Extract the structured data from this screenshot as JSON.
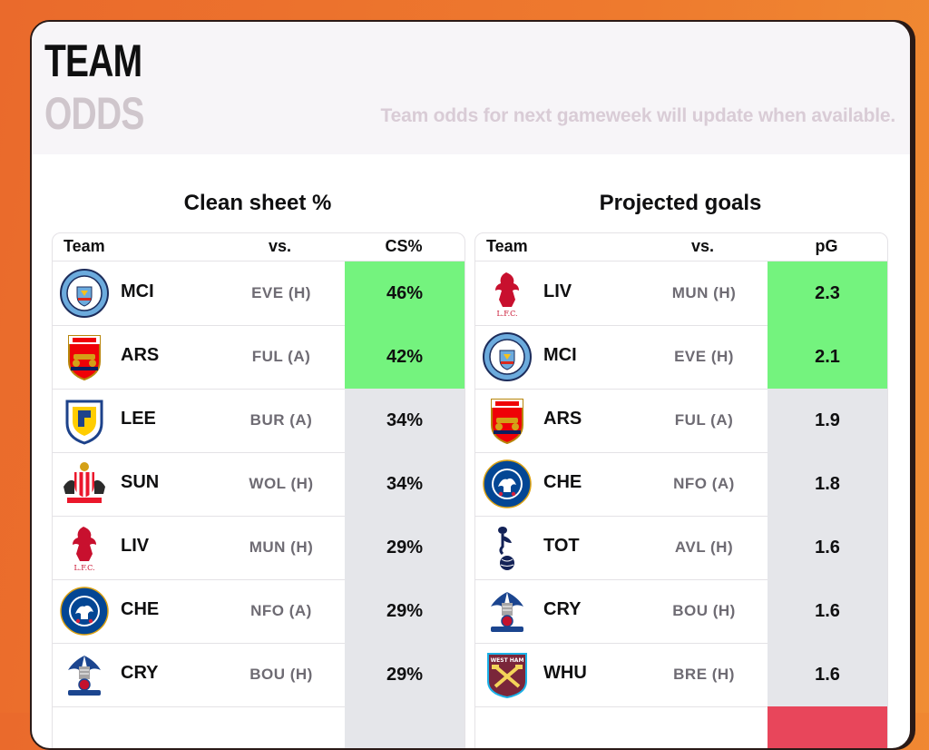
{
  "header": {
    "title_line1": "TEAM",
    "title_line2": "ODDS",
    "subtitle": "Team odds for next gameweek will update when available."
  },
  "colors": {
    "green": "#74f37e",
    "grey": "#e5e6ea",
    "red": "#e8465b"
  },
  "clean_sheet": {
    "title": "Clean sheet %",
    "columns": [
      "Team",
      "vs.",
      "CS%"
    ],
    "rows": [
      {
        "crest": "man-city-crest-icon",
        "team": "MCI",
        "opponent": "EVE (H)",
        "value": "46%",
        "level": "green"
      },
      {
        "crest": "arsenal-crest-icon",
        "team": "ARS",
        "opponent": "FUL (A)",
        "value": "42%",
        "level": "green"
      },
      {
        "crest": "leeds-crest-icon",
        "team": "LEE",
        "opponent": "BUR (A)",
        "value": "34%",
        "level": "grey"
      },
      {
        "crest": "sunderland-crest-icon",
        "team": "SUN",
        "opponent": "WOL (H)",
        "value": "34%",
        "level": "grey"
      },
      {
        "crest": "liverpool-crest-icon",
        "team": "LIV",
        "opponent": "MUN (H)",
        "value": "29%",
        "level": "grey"
      },
      {
        "crest": "chelsea-crest-icon",
        "team": "CHE",
        "opponent": "NFO (A)",
        "value": "29%",
        "level": "grey"
      },
      {
        "crest": "crystal-palace-crest-icon",
        "team": "CRY",
        "opponent": "BOU (H)",
        "value": "29%",
        "level": "grey"
      },
      {
        "crest": "",
        "team": "",
        "opponent": "",
        "value": "",
        "level": "grey"
      }
    ]
  },
  "projected_goals": {
    "title": "Projected goals",
    "columns": [
      "Team",
      "vs.",
      "pG"
    ],
    "rows": [
      {
        "crest": "liverpool-crest-icon",
        "team": "LIV",
        "opponent": "MUN (H)",
        "value": "2.3",
        "level": "green"
      },
      {
        "crest": "man-city-crest-icon",
        "team": "MCI",
        "opponent": "EVE (H)",
        "value": "2.1",
        "level": "green"
      },
      {
        "crest": "arsenal-crest-icon",
        "team": "ARS",
        "opponent": "FUL (A)",
        "value": "1.9",
        "level": "grey"
      },
      {
        "crest": "chelsea-crest-icon",
        "team": "CHE",
        "opponent": "NFO (A)",
        "value": "1.8",
        "level": "grey"
      },
      {
        "crest": "tottenham-crest-icon",
        "team": "TOT",
        "opponent": "AVL (H)",
        "value": "1.6",
        "level": "grey"
      },
      {
        "crest": "crystal-palace-crest-icon",
        "team": "CRY",
        "opponent": "BOU (H)",
        "value": "1.6",
        "level": "grey"
      },
      {
        "crest": "west-ham-crest-icon",
        "team": "WHU",
        "opponent": "BRE (H)",
        "value": "1.6",
        "level": "grey"
      },
      {
        "crest": "",
        "team": "",
        "opponent": "",
        "value": "",
        "level": "red"
      }
    ]
  }
}
